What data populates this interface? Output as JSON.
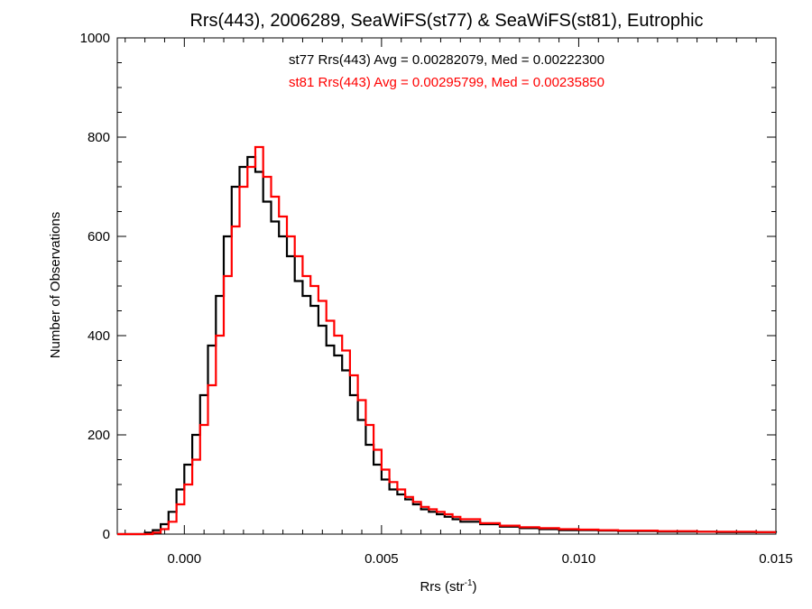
{
  "colors": {
    "st77": "#000000",
    "st81": "#ff0000"
  },
  "chart_data": {
    "type": "histogram",
    "title": "Rrs(443), 2006289, SeaWiFS(st77) & SeaWiFS(st81), Eutrophic",
    "xlabel": "Rrs (str",
    "xlabel_sup": "-1",
    "xlabel_close": ")",
    "ylabel": "Number of Observations",
    "xlim": [
      -0.0017,
      0.015
    ],
    "ylim": [
      0,
      1000
    ],
    "x_ticks": [
      0.0,
      0.005,
      0.01,
      0.015
    ],
    "x_tick_labels": [
      "0.000",
      "0.005",
      "0.010",
      "0.015"
    ],
    "y_ticks": [
      0,
      200,
      400,
      600,
      800,
      1000
    ],
    "y_tick_labels": [
      "0",
      "200",
      "400",
      "600",
      "800",
      "1000"
    ],
    "annotations": [
      "st77 Rrs(443) Avg = 0.00282079, Med = 0.00222300",
      "st81 Rrs(443) Avg = 0.00295799, Med = 0.00235850"
    ],
    "grid": false,
    "series": [
      {
        "name": "st77",
        "color": "#000000",
        "x": [
          -0.0017,
          -0.0012,
          -0.001,
          -0.0008,
          -0.0006,
          -0.0004,
          -0.0002,
          0.0,
          0.0002,
          0.0004,
          0.0006,
          0.0008,
          0.001,
          0.0012,
          0.0014,
          0.0016,
          0.0018,
          0.002,
          0.0022,
          0.0024,
          0.0026,
          0.0028,
          0.003,
          0.0032,
          0.0034,
          0.0036,
          0.0038,
          0.004,
          0.0042,
          0.0044,
          0.0046,
          0.0048,
          0.005,
          0.0052,
          0.0054,
          0.0056,
          0.0058,
          0.006,
          0.0062,
          0.0064,
          0.0066,
          0.0068,
          0.007,
          0.0075,
          0.008,
          0.0085,
          0.009,
          0.0095,
          0.01,
          0.0105,
          0.011,
          0.0115,
          0.012,
          0.0125,
          0.013,
          0.0135,
          0.014,
          0.0145,
          0.015
        ],
        "y": [
          0,
          0,
          3,
          8,
          20,
          45,
          90,
          140,
          200,
          280,
          380,
          480,
          600,
          700,
          740,
          760,
          730,
          670,
          630,
          600,
          560,
          510,
          480,
          460,
          420,
          380,
          360,
          330,
          280,
          230,
          180,
          140,
          110,
          90,
          80,
          70,
          60,
          50,
          45,
          40,
          35,
          30,
          25,
          20,
          15,
          12,
          10,
          8,
          8,
          7,
          6,
          6,
          5,
          5,
          5,
          4,
          4,
          4,
          3
        ]
      },
      {
        "name": "st81",
        "color": "#ff0000",
        "x": [
          -0.0017,
          -0.0012,
          -0.001,
          -0.0008,
          -0.0006,
          -0.0004,
          -0.0002,
          0.0,
          0.0002,
          0.0004,
          0.0006,
          0.0008,
          0.001,
          0.0012,
          0.0014,
          0.0016,
          0.0018,
          0.002,
          0.0022,
          0.0024,
          0.0026,
          0.0028,
          0.003,
          0.0032,
          0.0034,
          0.0036,
          0.0038,
          0.004,
          0.0042,
          0.0044,
          0.0046,
          0.0048,
          0.005,
          0.0052,
          0.0054,
          0.0056,
          0.0058,
          0.006,
          0.0062,
          0.0064,
          0.0066,
          0.0068,
          0.007,
          0.0075,
          0.008,
          0.0085,
          0.009,
          0.0095,
          0.01,
          0.0105,
          0.011,
          0.0115,
          0.012,
          0.0125,
          0.013,
          0.0135,
          0.014,
          0.0145,
          0.015
        ],
        "y": [
          0,
          0,
          0,
          3,
          10,
          25,
          60,
          100,
          150,
          220,
          300,
          400,
          520,
          620,
          700,
          740,
          780,
          720,
          680,
          640,
          600,
          560,
          520,
          500,
          470,
          430,
          400,
          370,
          320,
          270,
          220,
          170,
          130,
          105,
          90,
          75,
          65,
          55,
          50,
          45,
          40,
          35,
          30,
          22,
          17,
          14,
          12,
          10,
          9,
          8,
          7,
          7,
          6,
          6,
          5,
          5,
          5,
          4,
          4
        ]
      }
    ]
  }
}
